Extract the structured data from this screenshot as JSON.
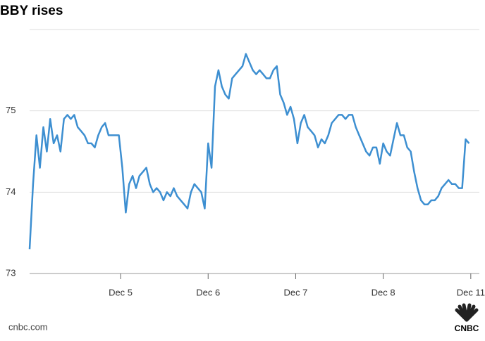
{
  "chart_data": {
    "type": "line",
    "title": "BBY rises",
    "source": "cnbc.com",
    "logo_text": "CNBC",
    "x": [
      0,
      1,
      2,
      3,
      4,
      5,
      6,
      7,
      8,
      9,
      10,
      11,
      12,
      13,
      14,
      15,
      16,
      17,
      18,
      19,
      20,
      21,
      22,
      23,
      24,
      25,
      26,
      27,
      28,
      29,
      30,
      31,
      32,
      33,
      34,
      35,
      36,
      37,
      38,
      39,
      40,
      41,
      42,
      43,
      44,
      45,
      46,
      47,
      48,
      49,
      50,
      51,
      52,
      53,
      54,
      55,
      56,
      57,
      58,
      59,
      60,
      61,
      62,
      63,
      64,
      65,
      66,
      67,
      68,
      69,
      70,
      71,
      72,
      73,
      74,
      75,
      76,
      77,
      78,
      79,
      80,
      81,
      82,
      83,
      84,
      85,
      86,
      87,
      88,
      89,
      90,
      91,
      92,
      93,
      94,
      95,
      96,
      97,
      98,
      99,
      100,
      101,
      102,
      103,
      104,
      105,
      106,
      107,
      108,
      109,
      110,
      111,
      112,
      113,
      114,
      115,
      116,
      117,
      118,
      119,
      120,
      121,
      122,
      123,
      124,
      125,
      126,
      127,
      128
    ],
    "series": [
      {
        "name": "BBY",
        "color": "#3d8fd1",
        "values": [
          73.3,
          74.1,
          74.7,
          74.3,
          74.8,
          74.5,
          74.9,
          74.6,
          74.7,
          74.5,
          74.9,
          74.95,
          74.9,
          74.95,
          74.8,
          74.75,
          74.7,
          74.6,
          74.6,
          74.55,
          74.7,
          74.8,
          74.85,
          74.7,
          74.7,
          74.7,
          74.7,
          74.3,
          73.75,
          74.1,
          74.2,
          74.05,
          74.2,
          74.25,
          74.3,
          74.1,
          74.0,
          74.05,
          74.0,
          73.9,
          74.0,
          73.95,
          74.05,
          73.95,
          73.9,
          73.85,
          73.8,
          74.0,
          74.1,
          74.05,
          74.0,
          73.8,
          74.6,
          74.3,
          75.3,
          75.5,
          75.3,
          75.2,
          75.15,
          75.4,
          75.45,
          75.5,
          75.55,
          75.7,
          75.6,
          75.5,
          75.45,
          75.5,
          75.45,
          75.4,
          75.4,
          75.5,
          75.55,
          75.2,
          75.1,
          74.95,
          75.05,
          74.9,
          74.6,
          74.85,
          74.95,
          74.8,
          74.75,
          74.7,
          74.55,
          74.65,
          74.6,
          74.7,
          74.85,
          74.9,
          74.95,
          74.95,
          74.9,
          74.95,
          74.95,
          74.8,
          74.7,
          74.6,
          74.5,
          74.45,
          74.55,
          74.55,
          74.35,
          74.6,
          74.5,
          74.45,
          74.65,
          74.85,
          74.7,
          74.7,
          74.55,
          74.5,
          74.25,
          74.05,
          73.9,
          73.85,
          73.85,
          73.9,
          73.9,
          73.95,
          74.05,
          74.1,
          74.15,
          74.1,
          74.1,
          74.05,
          74.05,
          74.65,
          74.6
        ]
      }
    ],
    "xlim": [
      0,
      131
    ],
    "xticks": [
      {
        "value": 26.5,
        "label": "Dec 5"
      },
      {
        "value": 52,
        "label": "Dec 6"
      },
      {
        "value": 77.5,
        "label": "Dec 7"
      },
      {
        "value": 103,
        "label": "Dec 8"
      },
      {
        "value": 128.5,
        "label": "Dec 11"
      }
    ],
    "ylim": [
      73,
      76
    ],
    "yticks": [
      73,
      74,
      75
    ],
    "grid": true
  }
}
